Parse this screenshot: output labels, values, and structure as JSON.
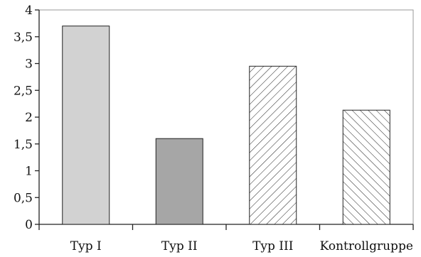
{
  "chart_data": {
    "type": "bar",
    "title": "",
    "xlabel": "",
    "ylabel": "",
    "ylim": [
      0,
      4
    ],
    "y_ticks": [
      "0",
      "0,5",
      "1",
      "1,5",
      "2",
      "2,5",
      "3",
      "3,5",
      "4"
    ],
    "y_tick_values": [
      0,
      0.5,
      1,
      1.5,
      2,
      2.5,
      3,
      3.5,
      4
    ],
    "grid": false,
    "categories": [
      "Typ I",
      "Typ II",
      "Typ III",
      "Kontrollgruppe"
    ],
    "values": [
      3.7,
      1.6,
      2.95,
      2.13
    ],
    "bar_styles": [
      {
        "fill": "#d2d2d2",
        "pattern": "none"
      },
      {
        "fill": "#a6a6a6",
        "pattern": "none"
      },
      {
        "fill": "#ffffff",
        "pattern": "hatch-forward"
      },
      {
        "fill": "#ffffff",
        "pattern": "hatch-back"
      }
    ]
  }
}
